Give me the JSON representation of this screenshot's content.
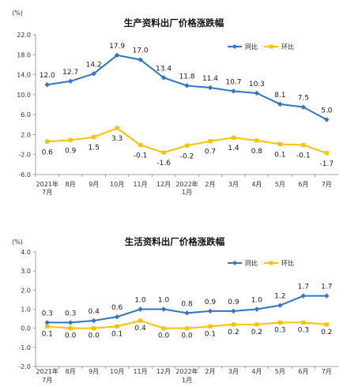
{
  "charts": [
    {
      "title": "生产资料出厂价格涨跌幅",
      "unit": "(%)",
      "legend": [
        "同比",
        "环比"
      ],
      "x_labels": [
        "2021年",
        "8月",
        "9月",
        "10月",
        "11月",
        "12月",
        "2022年",
        "2月",
        "3月",
        "4月",
        "5月",
        "6月",
        "7月"
      ],
      "x_labels_sub": [
        "7月",
        "",
        "",
        "",
        "",
        "",
        "1月",
        "",
        "",
        "",
        "",
        "",
        ""
      ],
      "y_tick_labels": [
        "-6.0",
        "-2.0",
        "2.0",
        "6.0",
        "10.0",
        "14.0",
        "18.0",
        "22.0"
      ],
      "yoy_labels": [
        "12.0",
        "12.7",
        "14.2",
        "17.9",
        "17.0",
        "13.4",
        "11.8",
        "11.4",
        "10.7",
        "10.3",
        "8.1",
        "7.5",
        "5.0"
      ],
      "mom_labels": [
        "0.6",
        "0.9",
        "1.5",
        "3.3",
        "-0.1",
        "-1.6",
        "-0.2",
        "0.7",
        "1.4",
        "0.8",
        "0.1",
        "-0.1",
        "-1.7"
      ]
    },
    {
      "title": "生活资料出厂价格涨跌幅",
      "unit": "(%)",
      "legend": [
        "同比",
        "环比"
      ],
      "x_labels": [
        "2021年",
        "8月",
        "9月",
        "10月",
        "11月",
        "12月",
        "2022年",
        "2月",
        "3月",
        "4月",
        "5月",
        "6月",
        "7月"
      ],
      "x_labels_sub": [
        "7月",
        "",
        "",
        "",
        "",
        "",
        "1月",
        "",
        "",
        "",
        "",
        "",
        ""
      ],
      "y_tick_labels": [
        "-2.0",
        "-1.0",
        "0.0",
        "1.0",
        "2.0",
        "3.0",
        "4.0"
      ],
      "yoy_labels": [
        "0.3",
        "0.3",
        "0.4",
        "0.6",
        "1.0",
        "1.0",
        "0.8",
        "0.9",
        "0.9",
        "1.0",
        "1.2",
        "1.7",
        "1.7"
      ],
      "mom_labels": [
        "0.1",
        "0.0",
        "0.0",
        "0.1",
        "0.4",
        "0.0",
        "0.0",
        "0.1",
        "0.2",
        "0.2",
        "0.3",
        "0.3",
        "0.2"
      ]
    }
  ],
  "chart_data": [
    {
      "type": "line",
      "title": "生产资料出厂价格涨跌幅",
      "ylabel": "(%)",
      "categories": [
        "2021年7月",
        "8月",
        "9月",
        "10月",
        "11月",
        "12月",
        "2022年1月",
        "2月",
        "3月",
        "4月",
        "5月",
        "6月",
        "7月"
      ],
      "ylim": [
        -6,
        22
      ],
      "yticks": [
        -6,
        -2,
        2,
        6,
        10,
        14,
        18,
        22
      ],
      "legend_position": "top-right",
      "series": [
        {
          "name": "同比",
          "color": "#2e75c9",
          "marker": "diamond",
          "values": [
            12.0,
            12.7,
            14.2,
            17.9,
            17.0,
            13.4,
            11.8,
            11.4,
            10.7,
            10.3,
            8.1,
            7.5,
            5.0
          ]
        },
        {
          "name": "环比",
          "color": "#ffc000",
          "marker": "square",
          "values": [
            0.6,
            0.9,
            1.5,
            3.3,
            -0.1,
            -1.6,
            -0.2,
            0.7,
            1.4,
            0.8,
            0.1,
            -0.1,
            -1.7
          ]
        }
      ]
    },
    {
      "type": "line",
      "title": "生活资料出厂价格涨跌幅",
      "ylabel": "(%)",
      "categories": [
        "2021年7月",
        "8月",
        "9月",
        "10月",
        "11月",
        "12月",
        "2022年1月",
        "2月",
        "3月",
        "4月",
        "5月",
        "6月",
        "7月"
      ],
      "ylim": [
        -2,
        4
      ],
      "yticks": [
        -2,
        -1,
        0,
        1,
        2,
        3,
        4
      ],
      "legend_position": "top-right",
      "series": [
        {
          "name": "同比",
          "color": "#2e75c9",
          "marker": "diamond",
          "values": [
            0.3,
            0.3,
            0.4,
            0.6,
            1.0,
            1.0,
            0.8,
            0.9,
            0.9,
            1.0,
            1.2,
            1.7,
            1.7
          ]
        },
        {
          "name": "环比",
          "color": "#ffc000",
          "marker": "square",
          "values": [
            0.1,
            0.0,
            0.0,
            0.1,
            0.4,
            0.0,
            0.0,
            0.1,
            0.2,
            0.2,
            0.3,
            0.3,
            0.2
          ]
        }
      ]
    }
  ]
}
